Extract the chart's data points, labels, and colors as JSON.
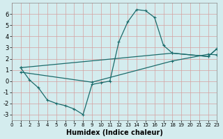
{
  "xlabel": "Humidex (Indice chaleur)",
  "background_color": "#d4ecee",
  "grid_color": "#c0d8da",
  "line_color": "#1a6b6b",
  "xlim": [
    0,
    23
  ],
  "ylim": [
    -3.5,
    7.0
  ],
  "xticks": [
    0,
    1,
    2,
    3,
    4,
    5,
    6,
    7,
    8,
    9,
    10,
    11,
    12,
    13,
    14,
    15,
    16,
    17,
    18,
    19,
    20,
    21,
    22,
    23
  ],
  "yticks": [
    -3,
    -2,
    -1,
    0,
    1,
    2,
    3,
    4,
    5,
    6
  ],
  "curve1_x": [
    1,
    2,
    3,
    4,
    5,
    6,
    7,
    8,
    9,
    10,
    11,
    12,
    13,
    14,
    15,
    16,
    17,
    18,
    22,
    23
  ],
  "curve1_y": [
    1.2,
    0.1,
    -0.6,
    -1.7,
    -2.0,
    -2.2,
    -2.5,
    -3.0,
    -0.3,
    -0.15,
    0.0,
    3.5,
    5.3,
    6.4,
    6.3,
    5.7,
    3.2,
    2.5,
    2.2,
    2.9
  ],
  "line2_x": [
    1,
    18,
    22,
    23
  ],
  "line2_y": [
    1.2,
    2.5,
    2.2,
    2.9
  ],
  "line3_x": [
    1,
    9,
    18,
    22,
    23
  ],
  "line3_y": [
    0.8,
    -0.1,
    1.8,
    2.4,
    2.35
  ]
}
